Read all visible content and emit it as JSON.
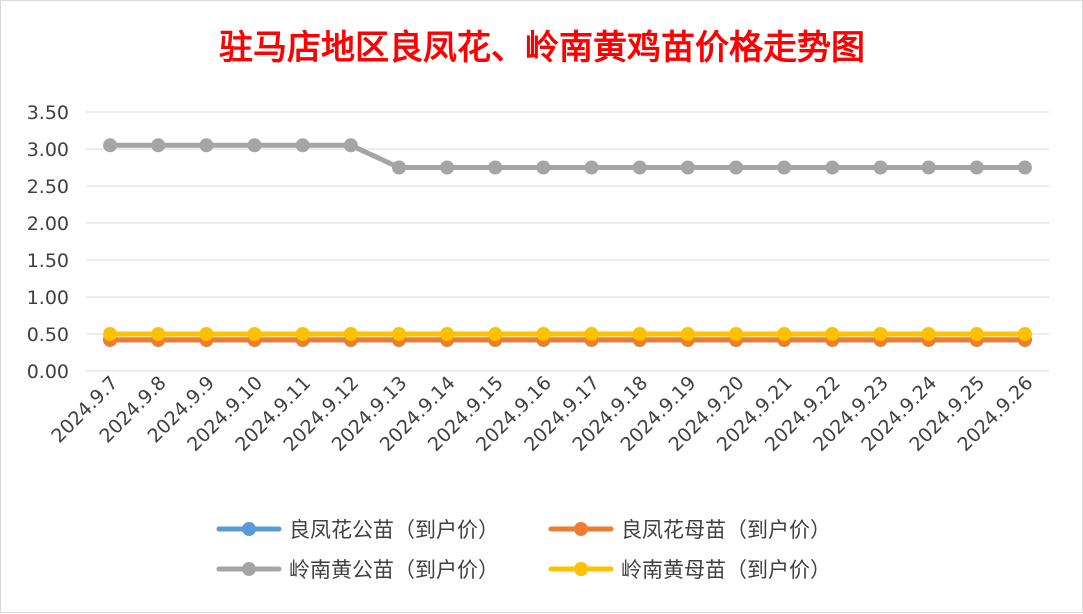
{
  "chart_data": {
    "type": "line",
    "title": "驻马店地区良凤花、岭南黄鸡苗价格走势图",
    "xlabel": "",
    "ylabel": "",
    "ylim": [
      0,
      3.5
    ],
    "yticks": [
      "0.00",
      "0.50",
      "1.00",
      "1.50",
      "2.00",
      "2.50",
      "3.00",
      "3.50"
    ],
    "grid": true,
    "legend_position": "bottom",
    "categories": [
      "2024.9.7",
      "2024.9.8",
      "2024.9.9",
      "2024.9.10",
      "2024.9.11",
      "2024.9.12",
      "2024.9.13",
      "2024.9.14",
      "2024.9.15",
      "2024.9.16",
      "2024.9.17",
      "2024.9.18",
      "2024.9.19",
      "2024.9.20",
      "2024.9.21",
      "2024.9.22",
      "2024.9.23",
      "2024.9.24",
      "2024.9.25",
      "2024.9.26"
    ],
    "series": [
      {
        "name": "良凤花公苗（到户价）",
        "color": "#5b9bd5",
        "values": [
          0.42,
          0.42,
          0.42,
          0.42,
          0.42,
          0.42,
          0.42,
          0.42,
          0.42,
          0.42,
          0.42,
          0.42,
          0.42,
          0.42,
          0.42,
          0.42,
          0.42,
          0.42,
          0.42,
          0.42
        ]
      },
      {
        "name": "良凤花母苗（到户价）",
        "color": "#ed7d31",
        "values": [
          0.42,
          0.42,
          0.42,
          0.42,
          0.42,
          0.42,
          0.42,
          0.42,
          0.42,
          0.42,
          0.42,
          0.42,
          0.42,
          0.42,
          0.42,
          0.42,
          0.42,
          0.42,
          0.42,
          0.42
        ]
      },
      {
        "name": "岭南黄公苗（到户价）",
        "color": "#a5a5a5",
        "values": [
          3.05,
          3.05,
          3.05,
          3.05,
          3.05,
          3.05,
          2.75,
          2.75,
          2.75,
          2.75,
          2.75,
          2.75,
          2.75,
          2.75,
          2.75,
          2.75,
          2.75,
          2.75,
          2.75,
          2.75
        ]
      },
      {
        "name": "岭南黄母苗（到户价）",
        "color": "#ffc000",
        "values": [
          0.5,
          0.5,
          0.5,
          0.5,
          0.5,
          0.5,
          0.5,
          0.5,
          0.5,
          0.5,
          0.5,
          0.5,
          0.5,
          0.5,
          0.5,
          0.5,
          0.5,
          0.5,
          0.5,
          0.5
        ]
      }
    ]
  }
}
